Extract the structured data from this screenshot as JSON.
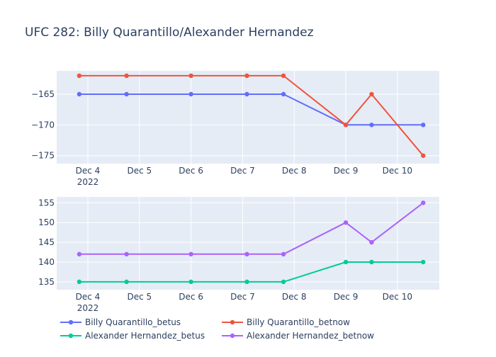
{
  "chart_data": {
    "type": "line",
    "title": "UFC 282: Billy Quarantillo/Alexander Hernandez",
    "x_tick_labels": [
      "Dec 4",
      "Dec 5",
      "Dec 6",
      "Dec 7",
      "Dec 8",
      "Dec 9",
      "Dec 10"
    ],
    "x_year_label": "2022",
    "x_range": [
      "2022-12-03T09:30",
      "2022-12-10T19:30"
    ],
    "legend_position": "bottom",
    "panels": [
      {
        "name": "top",
        "ylim": [
          -176.3,
          -161.2
        ],
        "y_ticks": [
          -165,
          -170,
          -175
        ],
        "series": [
          {
            "name": "Billy Quarantillo_betus",
            "color": "#636efa",
            "x": [
              "2022-12-03T20:00",
              "2022-12-04T18:00",
              "2022-12-06T00:00",
              "2022-12-07T02:00",
              "2022-12-07T19:00",
              "2022-12-09T00:00",
              "2022-12-09T12:00",
              "2022-12-10T12:00"
            ],
            "y": [
              -165,
              -165,
              -165,
              -165,
              -165,
              -170,
              -170,
              -170
            ]
          },
          {
            "name": "Billy Quarantillo_betnow",
            "color": "#ef553b",
            "x": [
              "2022-12-03T20:00",
              "2022-12-04T18:00",
              "2022-12-06T00:00",
              "2022-12-07T02:00",
              "2022-12-07T19:00",
              "2022-12-09T00:00",
              "2022-12-09T12:00",
              "2022-12-10T12:00"
            ],
            "y": [
              -162,
              -162,
              -162,
              -162,
              -162,
              -170,
              -165,
              -175
            ]
          }
        ]
      },
      {
        "name": "bottom",
        "ylim": [
          133,
          156.5
        ],
        "y_ticks": [
          135,
          140,
          145,
          150,
          155
        ],
        "series": [
          {
            "name": "Alexander Hernandez_betus",
            "color": "#00cc96",
            "x": [
              "2022-12-03T20:00",
              "2022-12-04T18:00",
              "2022-12-06T00:00",
              "2022-12-07T02:00",
              "2022-12-07T19:00",
              "2022-12-09T00:00",
              "2022-12-09T12:00",
              "2022-12-10T12:00"
            ],
            "y": [
              135,
              135,
              135,
              135,
              135,
              140,
              140,
              140
            ]
          },
          {
            "name": "Alexander Hernandez_betnow",
            "color": "#ab63fa",
            "x": [
              "2022-12-03T20:00",
              "2022-12-04T18:00",
              "2022-12-06T00:00",
              "2022-12-07T02:00",
              "2022-12-07T19:00",
              "2022-12-09T00:00",
              "2022-12-09T12:00",
              "2022-12-10T12:00"
            ],
            "y": [
              142,
              142,
              142,
              142,
              142,
              150,
              145,
              155
            ]
          }
        ]
      }
    ]
  }
}
